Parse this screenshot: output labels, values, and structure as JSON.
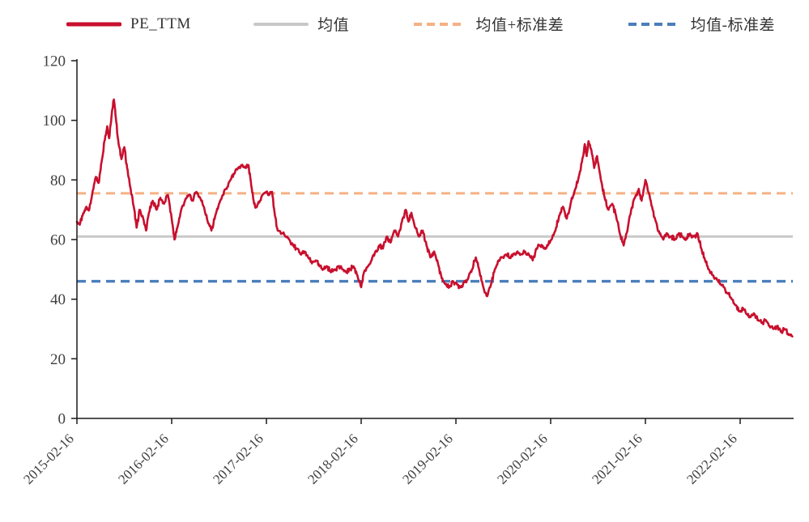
{
  "legend": [
    {
      "id": "pe-ttm",
      "label": "PE_TTM",
      "color": "#c8102e",
      "dash": "solid",
      "width": 5
    },
    {
      "id": "mean",
      "label": "均值",
      "color": "#c8c8c8",
      "dash": "solid",
      "width": 4
    },
    {
      "id": "mean-plus-std",
      "label": "均值+标准差",
      "color": "#f5b183",
      "dash": "dashed",
      "width": 4
    },
    {
      "id": "mean-minus-std",
      "label": "均值-标准差",
      "color": "#4a7ebb",
      "dash": "dashed",
      "width": 4
    }
  ],
  "chart_data": {
    "type": "line",
    "title": "",
    "xlabel": "",
    "ylabel": "",
    "grid": false,
    "legend_position": "top",
    "ylim": [
      0,
      120
    ],
    "y_ticks": [
      0,
      20,
      40,
      60,
      80,
      100,
      120
    ],
    "x_tick_positions": [
      0,
      1,
      2,
      3,
      4,
      5,
      6,
      7
    ],
    "x_tick_labels": [
      "2015-02-16",
      "2016-02-16",
      "2017-02-16",
      "2018-02-16",
      "2019-02-16",
      "2020-02-16",
      "2021-02-16",
      "2022-02-16"
    ],
    "x_unit": "years since 2015-02-16",
    "axis_color": "#1a1a1a",
    "text_color": "#404040",
    "reference_lines": [
      {
        "name": "均值",
        "value": 61,
        "color": "#c8c8c8",
        "style": "solid",
        "width": 3
      },
      {
        "name": "均值+标准差",
        "value": 75.5,
        "color": "#f5b183",
        "style": "dashed",
        "width": 3
      },
      {
        "name": "均值-标准差",
        "value": 46,
        "color": "#4a7ebb",
        "style": "dashed",
        "width": 3.4
      }
    ],
    "series": [
      {
        "name": "PE_TTM",
        "color": "#c8102e",
        "width": 2.6,
        "points": [
          [
            0.0,
            66
          ],
          [
            0.03,
            65
          ],
          [
            0.06,
            68
          ],
          [
            0.1,
            71
          ],
          [
            0.13,
            70
          ],
          [
            0.16,
            75
          ],
          [
            0.2,
            81
          ],
          [
            0.23,
            79
          ],
          [
            0.26,
            86
          ],
          [
            0.29,
            93
          ],
          [
            0.32,
            98
          ],
          [
            0.34,
            94
          ],
          [
            0.37,
            103
          ],
          [
            0.39,
            107
          ],
          [
            0.41,
            101
          ],
          [
            0.44,
            92
          ],
          [
            0.47,
            87
          ],
          [
            0.5,
            91
          ],
          [
            0.53,
            84
          ],
          [
            0.56,
            78
          ],
          [
            0.6,
            71
          ],
          [
            0.63,
            64
          ],
          [
            0.66,
            70
          ],
          [
            0.7,
            67
          ],
          [
            0.73,
            63
          ],
          [
            0.76,
            69
          ],
          [
            0.8,
            73
          ],
          [
            0.84,
            70
          ],
          [
            0.88,
            74
          ],
          [
            0.92,
            72
          ],
          [
            0.96,
            75
          ],
          [
            1.0,
            67
          ],
          [
            1.03,
            60
          ],
          [
            1.06,
            64
          ],
          [
            1.1,
            70
          ],
          [
            1.14,
            73
          ],
          [
            1.18,
            75
          ],
          [
            1.22,
            73
          ],
          [
            1.26,
            76
          ],
          [
            1.3,
            74
          ],
          [
            1.34,
            71
          ],
          [
            1.38,
            66
          ],
          [
            1.42,
            63
          ],
          [
            1.46,
            68
          ],
          [
            1.5,
            72
          ],
          [
            1.54,
            75
          ],
          [
            1.58,
            77
          ],
          [
            1.62,
            80
          ],
          [
            1.66,
            82
          ],
          [
            1.7,
            84
          ],
          [
            1.74,
            85
          ],
          [
            1.78,
            84
          ],
          [
            1.81,
            85
          ],
          [
            1.84,
            78
          ],
          [
            1.87,
            72
          ],
          [
            1.9,
            71
          ],
          [
            1.93,
            73
          ],
          [
            1.96,
            75
          ],
          [
            2.0,
            76
          ],
          [
            2.03,
            75
          ],
          [
            2.06,
            76
          ],
          [
            2.09,
            68
          ],
          [
            2.12,
            63
          ],
          [
            2.16,
            62
          ],
          [
            2.2,
            61
          ],
          [
            2.24,
            60
          ],
          [
            2.28,
            58
          ],
          [
            2.32,
            57
          ],
          [
            2.36,
            55
          ],
          [
            2.4,
            56
          ],
          [
            2.44,
            54
          ],
          [
            2.48,
            52
          ],
          [
            2.52,
            53
          ],
          [
            2.56,
            51
          ],
          [
            2.6,
            50
          ],
          [
            2.64,
            51
          ],
          [
            2.68,
            49
          ],
          [
            2.72,
            50
          ],
          [
            2.76,
            51
          ],
          [
            2.8,
            50
          ],
          [
            2.84,
            49
          ],
          [
            2.88,
            50
          ],
          [
            2.92,
            51
          ],
          [
            2.96,
            48
          ],
          [
            3.0,
            44
          ],
          [
            3.03,
            49
          ],
          [
            3.07,
            51
          ],
          [
            3.11,
            53
          ],
          [
            3.15,
            56
          ],
          [
            3.19,
            58
          ],
          [
            3.23,
            57
          ],
          [
            3.27,
            61
          ],
          [
            3.31,
            59
          ],
          [
            3.35,
            63
          ],
          [
            3.39,
            61
          ],
          [
            3.43,
            66
          ],
          [
            3.47,
            70
          ],
          [
            3.5,
            66
          ],
          [
            3.53,
            69
          ],
          [
            3.57,
            64
          ],
          [
            3.61,
            61
          ],
          [
            3.65,
            63
          ],
          [
            3.69,
            58
          ],
          [
            3.73,
            54
          ],
          [
            3.77,
            56
          ],
          [
            3.81,
            52
          ],
          [
            3.85,
            47
          ],
          [
            3.89,
            45
          ],
          [
            3.93,
            44
          ],
          [
            3.97,
            46
          ],
          [
            4.01,
            45
          ],
          [
            4.05,
            44
          ],
          [
            4.09,
            46
          ],
          [
            4.13,
            47
          ],
          [
            4.17,
            50
          ],
          [
            4.21,
            54
          ],
          [
            4.25,
            49
          ],
          [
            4.29,
            44
          ],
          [
            4.33,
            41
          ],
          [
            4.37,
            45
          ],
          [
            4.41,
            50
          ],
          [
            4.45,
            53
          ],
          [
            4.49,
            54
          ],
          [
            4.53,
            55
          ],
          [
            4.57,
            54
          ],
          [
            4.61,
            55
          ],
          [
            4.65,
            56
          ],
          [
            4.69,
            55
          ],
          [
            4.73,
            56
          ],
          [
            4.77,
            55
          ],
          [
            4.81,
            53
          ],
          [
            4.85,
            57
          ],
          [
            4.89,
            58
          ],
          [
            4.93,
            57
          ],
          [
            4.97,
            58
          ],
          [
            5.01,
            60
          ],
          [
            5.05,
            63
          ],
          [
            5.09,
            68
          ],
          [
            5.13,
            71
          ],
          [
            5.17,
            67
          ],
          [
            5.21,
            72
          ],
          [
            5.25,
            76
          ],
          [
            5.29,
            80
          ],
          [
            5.33,
            86
          ],
          [
            5.36,
            92
          ],
          [
            5.38,
            88
          ],
          [
            5.4,
            93
          ],
          [
            5.43,
            90
          ],
          [
            5.46,
            84
          ],
          [
            5.49,
            88
          ],
          [
            5.53,
            80
          ],
          [
            5.57,
            74
          ],
          [
            5.61,
            70
          ],
          [
            5.65,
            72
          ],
          [
            5.69,
            68
          ],
          [
            5.73,
            62
          ],
          [
            5.77,
            58
          ],
          [
            5.81,
            63
          ],
          [
            5.85,
            70
          ],
          [
            5.89,
            74
          ],
          [
            5.93,
            77
          ],
          [
            5.96,
            73
          ],
          [
            6.0,
            80
          ],
          [
            6.03,
            76
          ],
          [
            6.07,
            71
          ],
          [
            6.11,
            66
          ],
          [
            6.15,
            62
          ],
          [
            6.19,
            60
          ],
          [
            6.23,
            62
          ],
          [
            6.27,
            61
          ],
          [
            6.31,
            60
          ],
          [
            6.35,
            62
          ],
          [
            6.39,
            61
          ],
          [
            6.43,
            60
          ],
          [
            6.47,
            62
          ],
          [
            6.51,
            61
          ],
          [
            6.55,
            62
          ],
          [
            6.59,
            57
          ],
          [
            6.63,
            53
          ],
          [
            6.67,
            50
          ],
          [
            6.71,
            48
          ],
          [
            6.75,
            47
          ],
          [
            6.79,
            45
          ],
          [
            6.83,
            44
          ],
          [
            6.87,
            42
          ],
          [
            6.91,
            40
          ],
          [
            6.95,
            38
          ],
          [
            6.99,
            36
          ],
          [
            7.03,
            37
          ],
          [
            7.07,
            35
          ],
          [
            7.11,
            34
          ],
          [
            7.15,
            35
          ],
          [
            7.19,
            33
          ],
          [
            7.23,
            32
          ],
          [
            7.27,
            33
          ],
          [
            7.31,
            31
          ],
          [
            7.35,
            30
          ],
          [
            7.39,
            31
          ],
          [
            7.43,
            29
          ],
          [
            7.47,
            30
          ],
          [
            7.51,
            28
          ],
          [
            7.55,
            27.5
          ]
        ]
      }
    ]
  }
}
